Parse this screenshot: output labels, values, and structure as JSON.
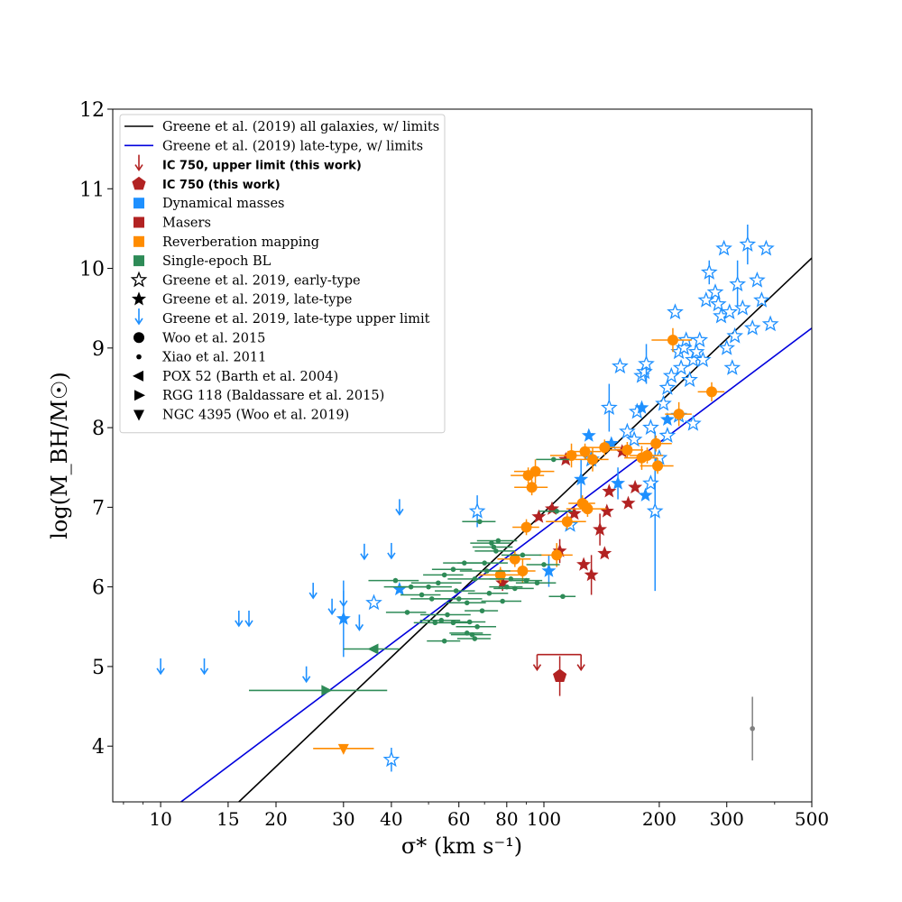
{
  "chart_data": {
    "type": "scatter",
    "title": "",
    "xlabel": "σ* (km s⁻¹)",
    "ylabel": "log(M_BH/M☉)",
    "xscale": "log",
    "xlim": [
      7.5,
      500
    ],
    "ylim": [
      3.3,
      12
    ],
    "xticks": [
      10,
      15,
      20,
      30,
      40,
      60,
      80,
      100,
      200,
      300,
      500
    ],
    "xtick_labels": [
      "10",
      "15",
      "20",
      "30",
      "40",
      "60",
      "80",
      "100",
      "200",
      "300",
      "500"
    ],
    "yticks": [
      4,
      5,
      6,
      7,
      8,
      9,
      10,
      11,
      12
    ],
    "ytick_labels": [
      "4",
      "5",
      "6",
      "7",
      "8",
      "9",
      "10",
      "11",
      "12"
    ],
    "legend_position": "top-left",
    "colors": {
      "dynamical": "#1e90ff",
      "maser": "#b22222",
      "reverberation": "#ff8c00",
      "single_epoch": "#2e8b57",
      "black": "#000000",
      "fit_late": "#0000dd",
      "grey": "#808080"
    },
    "legend": [
      {
        "label": "Greene et al. (2019) all galaxies, w/ limits",
        "marker": "line",
        "color": "#000000",
        "bold": false
      },
      {
        "label": "Greene et al. (2019) late-type, w/ limits",
        "marker": "line",
        "color": "#0000dd",
        "bold": false
      },
      {
        "label": "IC 750, upper limit (this work)",
        "marker": "arrow",
        "color": "#b22222",
        "bold": true
      },
      {
        "label": "IC 750 (this work)",
        "marker": "pentagon",
        "color": "#b22222",
        "bold": true
      },
      {
        "label": "Dynamical masses",
        "marker": "square",
        "color": "#1e90ff",
        "bold": false
      },
      {
        "label": "Masers",
        "marker": "square",
        "color": "#b22222",
        "bold": false
      },
      {
        "label": "Reverberation mapping",
        "marker": "square",
        "color": "#ff8c00",
        "bold": false
      },
      {
        "label": "Single-epoch BL",
        "marker": "square",
        "color": "#2e8b57",
        "bold": false
      },
      {
        "label": "Greene et al. 2019, early-type",
        "marker": "star-open",
        "color": "#000000",
        "bold": false
      },
      {
        "label": "Greene et al. 2019, late-type",
        "marker": "star",
        "color": "#000000",
        "bold": false
      },
      {
        "label": "Greene et al. 2019, late-type upper limit",
        "marker": "arrow",
        "color": "#1e90ff",
        "bold": false
      },
      {
        "label": "Woo et al. 2015",
        "marker": "circle",
        "color": "#000000",
        "bold": false
      },
      {
        "label": "Xiao et al. 2011",
        "marker": "dot",
        "color": "#000000",
        "bold": false
      },
      {
        "label": "POX 52 (Barth et al. 2004)",
        "marker": "tri-left",
        "color": "#000000",
        "bold": false
      },
      {
        "label": "RGG 118 (Baldassare et al. 2015)",
        "marker": "tri-right",
        "color": "#000000",
        "bold": false
      },
      {
        "label": "NGC 4395 (Woo et al. 2019)",
        "marker": "tri-down",
        "color": "#000000",
        "bold": false
      }
    ],
    "fit_lines": [
      {
        "name": "Greene et al. (2019) all galaxies, w/ limits",
        "color": "#000000",
        "x": [
          16,
          500
        ],
        "y": [
          3.3,
          10.13
        ]
      },
      {
        "name": "Greene et al. (2019) late-type, w/ limits",
        "color": "#0000dd",
        "x": [
          11.3,
          500
        ],
        "y": [
          3.3,
          9.25
        ]
      }
    ],
    "series": [
      {
        "name": "Greene et al. 2019, early-type",
        "marker": "star-open",
        "color": "#1e90ff",
        "x": [
          40,
          36,
          67,
          117,
          133,
          148,
          158,
          165,
          172,
          175,
          180,
          183,
          185,
          190,
          195,
          200,
          205,
          210,
          215,
          220,
          225,
          228,
          232,
          235,
          240,
          245,
          250,
          255,
          260,
          265,
          270,
          280,
          285,
          290,
          295,
          300,
          305,
          310,
          315,
          320,
          330,
          340,
          350,
          360,
          370,
          380,
          390,
          245,
          225,
          210,
          190
        ],
        "y": [
          3.83,
          5.8,
          6.95,
          6.78,
          7.6,
          8.25,
          8.77,
          7.95,
          7.85,
          8.2,
          8.65,
          8.7,
          8.8,
          8.0,
          6.95,
          7.62,
          8.3,
          8.5,
          8.65,
          9.45,
          8.95,
          8.75,
          9.0,
          9.1,
          8.6,
          8.85,
          8.95,
          9.1,
          8.85,
          9.6,
          9.95,
          9.7,
          9.55,
          9.4,
          10.25,
          9.0,
          9.45,
          8.75,
          9.15,
          9.8,
          9.5,
          10.3,
          9.25,
          9.85,
          9.6,
          10.25,
          9.3,
          8.05,
          8.15,
          7.9,
          7.3
        ],
        "yerr": [
          0.15,
          0.0,
          0.2,
          0.0,
          0.0,
          0.3,
          0.0,
          0.0,
          0.0,
          0.0,
          0.0,
          0.0,
          0.25,
          0.0,
          1.0,
          0.0,
          0.0,
          0.0,
          0.0,
          0.0,
          0.0,
          0.0,
          0.0,
          0.0,
          0.0,
          0.0,
          0.0,
          0.0,
          0.0,
          0.0,
          0.15,
          0.0,
          0.0,
          0.0,
          0.0,
          0.0,
          0.0,
          0.0,
          0.0,
          0.3,
          0.0,
          0.25,
          0.0,
          0.0,
          0.0,
          0.0,
          0.0,
          0.0,
          0.0,
          0.0,
          0.0
        ]
      },
      {
        "name": "Greene et al. 2019, late-type",
        "marker": "star",
        "color": "#1e90ff",
        "x": [
          30,
          42,
          103,
          125,
          131,
          150,
          156,
          180,
          184,
          210
        ],
        "y": [
          5.6,
          5.97,
          6.2,
          7.35,
          7.9,
          7.8,
          7.3,
          8.25,
          7.15,
          8.1
        ],
        "yerr": [
          0.48,
          0.0,
          0.2,
          0.25,
          0.0,
          0.0,
          0.2,
          0.0,
          0.0,
          0.0
        ]
      },
      {
        "name": "Greene et al. 2019, late-type upper limit",
        "marker": "arrow",
        "color": "#1e90ff",
        "x": [
          10,
          13,
          16,
          17,
          24,
          25,
          28,
          30,
          33,
          34,
          40,
          42
        ],
        "y": [
          5.0,
          5.0,
          5.6,
          5.6,
          4.9,
          5.95,
          5.75,
          5.85,
          5.55,
          6.44,
          6.45,
          7.0
        ]
      },
      {
        "name": "Masers",
        "marker": "star",
        "color": "#b22222",
        "x": [
          78,
          97,
          105,
          110,
          114,
          120,
          127,
          133,
          140,
          144,
          146,
          148,
          160,
          166,
          173
        ],
        "y": [
          6.05,
          6.88,
          6.98,
          6.45,
          7.6,
          6.92,
          6.28,
          6.15,
          6.72,
          6.42,
          6.95,
          7.2,
          7.7,
          7.05,
          7.25
        ],
        "yerr": [
          0.1,
          0.0,
          0.0,
          0.15,
          0.0,
          0.0,
          0.0,
          0.25,
          0.2,
          0.0,
          0.0,
          0.0,
          0.0,
          0.0,
          0.0
        ]
      },
      {
        "name": "Reverberation mapping",
        "marker": "circle",
        "color": "#ff8c00",
        "x": [
          77,
          84,
          88,
          90,
          91,
          93,
          95,
          108,
          115,
          118,
          126,
          128,
          130,
          134,
          144,
          165,
          180,
          186,
          196,
          198,
          217,
          225,
          274
        ],
        "y": [
          6.15,
          6.35,
          6.2,
          6.75,
          7.4,
          7.25,
          7.45,
          6.4,
          6.82,
          7.65,
          7.05,
          7.7,
          6.98,
          7.6,
          7.75,
          7.72,
          7.62,
          7.65,
          7.8,
          7.52,
          9.1,
          8.17,
          8.45
        ],
        "xerr_frac": [
          0.12,
          0.1,
          0.08,
          0.08,
          0.1,
          0.1,
          0.12,
          0.1,
          0.12,
          0.12,
          0.08,
          0.1,
          0.12,
          0.1,
          0.1,
          0.1,
          0.1,
          0.1,
          0.1,
          0.1,
          0.12,
          0.08,
          0.08
        ],
        "yerr": [
          0.1,
          0.1,
          0.15,
          0.1,
          0.1,
          0.1,
          0.15,
          0.15,
          0.1,
          0.15,
          0.1,
          0.1,
          0.1,
          0.15,
          0.1,
          0.1,
          0.15,
          0.1,
          0.1,
          0.1,
          0.15,
          0.15,
          0.12
        ]
      },
      {
        "name": "Single-epoch BL",
        "marker": "dot",
        "color": "#2e8b57",
        "x": [
          41,
          44,
          45,
          48,
          50,
          51,
          52,
          53,
          54,
          55,
          56,
          58,
          59,
          60,
          62,
          63,
          64,
          65,
          66,
          67,
          68,
          69,
          70,
          71,
          72,
          73,
          75,
          76,
          78,
          80,
          82,
          84,
          88,
          90,
          96,
          100,
          106,
          108,
          112,
          63,
          66,
          74,
          55,
          58
        ],
        "y": [
          6.08,
          5.68,
          6.0,
          5.9,
          6.0,
          5.85,
          5.55,
          6.05,
          5.58,
          5.32,
          5.65,
          6.22,
          5.95,
          5.85,
          6.3,
          5.8,
          5.56,
          5.4,
          6.1,
          5.5,
          6.82,
          5.7,
          6.3,
          6.2,
          5.92,
          6.55,
          6.45,
          6.58,
          5.82,
          6.0,
          6.1,
          5.98,
          6.4,
          6.08,
          6.05,
          6.28,
          7.6,
          6.95,
          5.88,
          5.42,
          5.35,
          6.5,
          6.15,
          5.55
        ],
        "xerr_frac": [
          0.15,
          0.12,
          0.15,
          0.12,
          0.15,
          0.12,
          0.12,
          0.15,
          0.12,
          0.1,
          0.15,
          0.12,
          0.12,
          0.15,
          0.12,
          0.12,
          0.1,
          0.12,
          0.15,
          0.12,
          0.1,
          0.1,
          0.15,
          0.15,
          0.12,
          0.12,
          0.12,
          0.12,
          0.12,
          0.1,
          0.12,
          0.12,
          0.12,
          0.1,
          0.12,
          0.1,
          0.1,
          0.1,
          0.08,
          0.1,
          0.1,
          0.12,
          0.12,
          0.12
        ]
      },
      {
        "name": "POX 52 (Barth et al. 2004)",
        "marker": "tri-left",
        "color": "#2e8b57",
        "x": [
          36
        ],
        "y": [
          5.22
        ],
        "xerr_low": [
          30
        ],
        "xerr_high": [
          42
        ]
      },
      {
        "name": "RGG 118 (Baldassare et al. 2015)",
        "marker": "tri-right",
        "color": "#2e8b57",
        "x": [
          27
        ],
        "y": [
          4.7
        ],
        "xerr_low": [
          17
        ],
        "xerr_high": [
          39
        ]
      },
      {
        "name": "NGC 4395 (Woo et al. 2019)",
        "marker": "tri-down",
        "color": "#ff8c00",
        "x": [
          30
        ],
        "y": [
          3.97
        ],
        "xerr_low": [
          25
        ],
        "xerr_high": [
          36
        ]
      },
      {
        "name": "IC 750 (this work)",
        "marker": "pentagon",
        "color": "#b22222",
        "x": [
          110
        ],
        "y": [
          4.88
        ],
        "yerr": [
          0.25
        ],
        "limit_bar": {
          "x_low": 96,
          "x_high": 125,
          "y": 5.15
        }
      },
      {
        "name": "typical error",
        "marker": "dot",
        "color": "#808080",
        "x": [
          350
        ],
        "y": [
          4.22
        ],
        "yerr": [
          0.4
        ]
      }
    ]
  }
}
